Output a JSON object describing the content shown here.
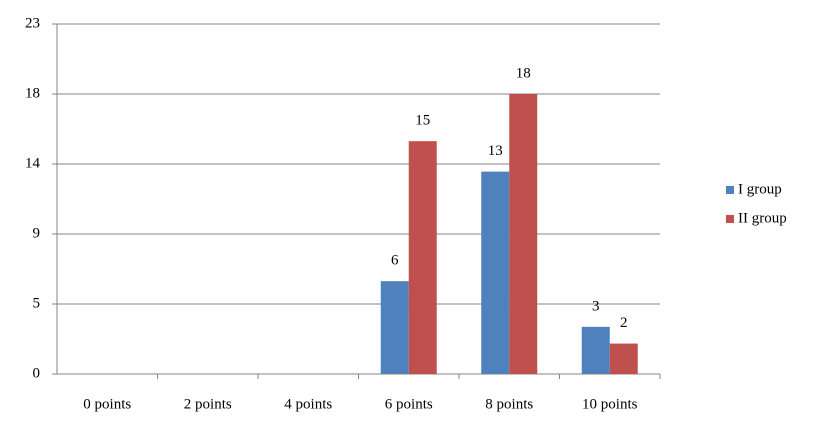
{
  "chart_data": {
    "type": "bar",
    "categories": [
      "0 points",
      "2 points",
      "4 points",
      "6 points",
      "8 points",
      "10 points"
    ],
    "series": [
      {
        "name": "I group",
        "color": "#4f81bd",
        "values": [
          0,
          0,
          0,
          6.1,
          13.3,
          3.1
        ],
        "value_labels": [
          null,
          null,
          null,
          "6",
          "13",
          "3"
        ]
      },
      {
        "name": "II group",
        "color": "#c0504d",
        "values": [
          0,
          0,
          0,
          15.3,
          18.4,
          2.0
        ],
        "value_labels": [
          null,
          null,
          null,
          "15",
          "18",
          "2"
        ]
      }
    ],
    "ylim": [
      0,
      23
    ],
    "yticks": [
      0,
      {
        "value": 4.6,
        "label": "5"
      },
      {
        "value": 9.2,
        "label": "9"
      },
      {
        "value": 13.8,
        "label": "14"
      },
      {
        "value": 18.4,
        "label": "18"
      },
      23
    ],
    "grid": true,
    "legend": "right"
  }
}
